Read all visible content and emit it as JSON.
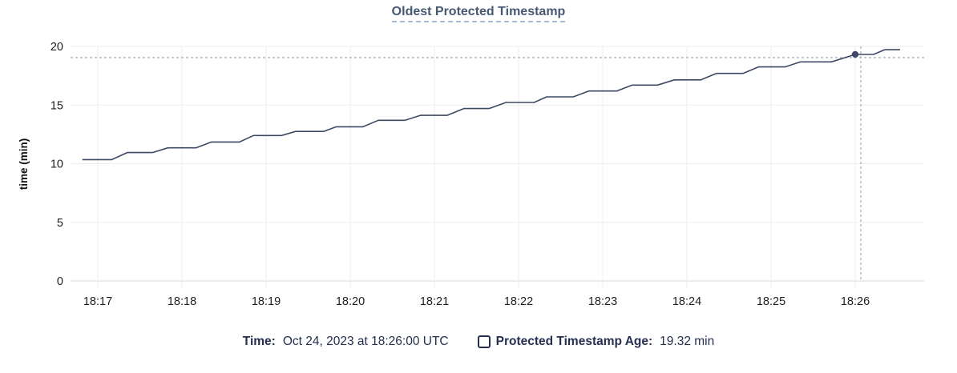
{
  "title": "Oldest Protected Timestamp",
  "legend": {
    "time_label": "Time:",
    "time_value": "Oct 24, 2023 at 18:26:00 UTC",
    "series_label": "Protected Timestamp Age:",
    "series_value": "19.32 min"
  },
  "colors": {
    "line": "#3e4a63",
    "dot": "#3e4a63",
    "title": "#475872",
    "legend_text": "#242f51",
    "grid": "#eeeeee",
    "baseline": "#d9d9d9",
    "crosshair": "#a6b4c2",
    "tick_text": "#1e1e1e"
  },
  "chart_data": {
    "type": "line",
    "title": "Oldest Protected Timestamp",
    "xlabel": "",
    "ylabel": "time (min)",
    "ylim": [
      0,
      20
    ],
    "y_ticks": [
      0,
      5,
      10,
      15,
      20
    ],
    "x_ticks": [
      "18:17",
      "18:18",
      "18:19",
      "18:20",
      "18:21",
      "18:22",
      "18:23",
      "18:24",
      "18:25",
      "18:26"
    ],
    "x_range": [
      "18:16:49",
      "18:26:32"
    ],
    "grid": true,
    "legend_position": "bottom",
    "series": [
      {
        "name": "Protected Timestamp Age",
        "points": [
          [
            "18:16:49",
            10.35
          ],
          [
            "18:17:10",
            10.35
          ],
          [
            "18:17:21",
            10.95
          ],
          [
            "18:17:39",
            10.95
          ],
          [
            "18:17:50",
            11.35
          ],
          [
            "18:18:10",
            11.35
          ],
          [
            "18:18:21",
            11.85
          ],
          [
            "18:18:41",
            11.85
          ],
          [
            "18:18:51",
            12.4
          ],
          [
            "18:19:11",
            12.4
          ],
          [
            "18:19:21",
            12.75
          ],
          [
            "18:19:41",
            12.75
          ],
          [
            "18:19:50",
            13.15
          ],
          [
            "18:20:09",
            13.15
          ],
          [
            "18:20:20",
            13.7
          ],
          [
            "18:20:39",
            13.7
          ],
          [
            "18:20:50",
            14.12
          ],
          [
            "18:21:09",
            14.12
          ],
          [
            "18:21:21",
            14.7
          ],
          [
            "18:21:39",
            14.7
          ],
          [
            "18:21:51",
            15.22
          ],
          [
            "18:22:11",
            15.22
          ],
          [
            "18:22:20",
            15.7
          ],
          [
            "18:22:39",
            15.7
          ],
          [
            "18:22:50",
            16.2
          ],
          [
            "18:23:10",
            16.2
          ],
          [
            "18:23:21",
            16.7
          ],
          [
            "18:23:39",
            16.7
          ],
          [
            "18:23:51",
            17.15
          ],
          [
            "18:24:10",
            17.15
          ],
          [
            "18:24:21",
            17.7
          ],
          [
            "18:24:40",
            17.7
          ],
          [
            "18:24:51",
            18.25
          ],
          [
            "18:25:10",
            18.25
          ],
          [
            "18:25:21",
            18.68
          ],
          [
            "18:25:43",
            18.68
          ],
          [
            "18:26:00",
            19.32
          ],
          [
            "18:26:13",
            19.32
          ],
          [
            "18:26:21",
            19.72
          ],
          [
            "18:26:32",
            19.72
          ]
        ]
      }
    ],
    "hover": {
      "time": "18:26:00",
      "value": 19.32,
      "crosshair_time": "18:26:04",
      "crosshair_value": 19.05
    }
  }
}
